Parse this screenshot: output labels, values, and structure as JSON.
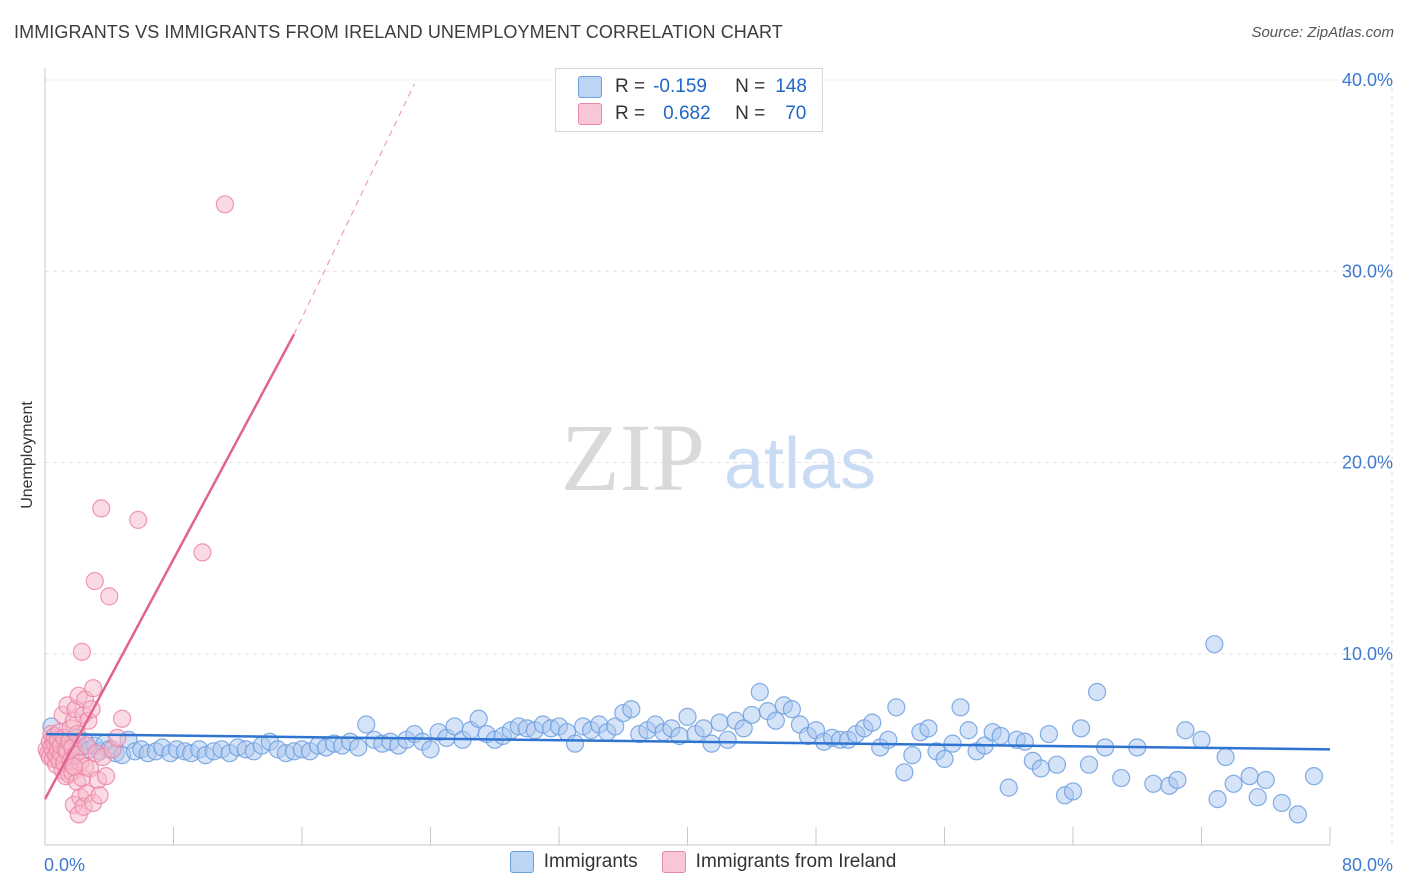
{
  "header": {
    "title": "IMMIGRANTS VS IMMIGRANTS FROM IRELAND UNEMPLOYMENT CORRELATION CHART",
    "source": "Source: ZipAtlas.com"
  },
  "watermark": {
    "zip": "ZIP",
    "atlas": "atlas"
  },
  "legend_top": {
    "rows": [
      {
        "r_label": "R =",
        "r_value": "-0.159",
        "n_label": "N =",
        "n_value": "148"
      },
      {
        "r_label": "R =",
        "r_value": "0.682",
        "n_label": "N =",
        "n_value": "70"
      }
    ]
  },
  "colors": {
    "blue_fill": "#aac8ef",
    "blue_stroke": "#6d9fdf",
    "blue_line": "#2f74d0",
    "pink_fill": "#f5b7c9",
    "pink_stroke": "#ec86a6",
    "pink_line": "#e2638f",
    "grid": "#e2e2e2",
    "axis_text": "#3e7ad0"
  },
  "chart_data": {
    "type": "scatter",
    "title": "IMMIGRANTS VS IMMIGRANTS FROM IRELAND UNEMPLOYMENT CORRELATION CHART",
    "xlabel": "",
    "ylabel": "Unemployment",
    "xlim": [
      0,
      80
    ],
    "ylim": [
      0,
      40
    ],
    "x_tick_labels": [
      "0.0%",
      "80.0%"
    ],
    "y_ticks": [
      10,
      20,
      30,
      40
    ],
    "y_tick_labels": [
      "10.0%",
      "20.0%",
      "30.0%",
      "40.0%"
    ],
    "grid": true,
    "legend_position": "top-center",
    "series": [
      {
        "name": "Immigrants",
        "r": -0.159,
        "n": 148,
        "trend": {
          "x0": 0.1,
          "y0": 5.8,
          "x1": 80,
          "y1": 5.0
        },
        "points": [
          [
            0.4,
            6.2
          ],
          [
            0.5,
            5.6
          ],
          [
            0.7,
            5.1
          ],
          [
            0.9,
            4.8
          ],
          [
            1.1,
            5.4
          ],
          [
            1.3,
            5.0
          ],
          [
            1.5,
            5.5
          ],
          [
            1.6,
            4.7
          ],
          [
            1.8,
            5.2
          ],
          [
            2.0,
            5.6
          ],
          [
            2.2,
            5.1
          ],
          [
            2.5,
            5.4
          ],
          [
            2.8,
            5.0
          ],
          [
            3.1,
            5.2
          ],
          [
            3.4,
            4.9
          ],
          [
            3.7,
            5.3
          ],
          [
            4.0,
            5.0
          ],
          [
            4.4,
            4.8
          ],
          [
            4.8,
            4.7
          ],
          [
            5.2,
            5.5
          ],
          [
            5.6,
            4.9
          ],
          [
            6.0,
            5.0
          ],
          [
            6.4,
            4.8
          ],
          [
            6.9,
            4.9
          ],
          [
            7.3,
            5.1
          ],
          [
            7.8,
            4.8
          ],
          [
            8.2,
            5.0
          ],
          [
            8.7,
            4.9
          ],
          [
            9.1,
            4.8
          ],
          [
            9.6,
            5.0
          ],
          [
            10.0,
            4.7
          ],
          [
            10.5,
            4.9
          ],
          [
            11.0,
            5.0
          ],
          [
            11.5,
            4.8
          ],
          [
            12.0,
            5.1
          ],
          [
            12.5,
            5.0
          ],
          [
            13.0,
            4.9
          ],
          [
            13.5,
            5.2
          ],
          [
            14.0,
            5.4
          ],
          [
            14.5,
            5.0
          ],
          [
            15.0,
            4.8
          ],
          [
            15.5,
            4.9
          ],
          [
            16.0,
            5.0
          ],
          [
            16.5,
            4.9
          ],
          [
            17.0,
            5.2
          ],
          [
            17.5,
            5.1
          ],
          [
            18.0,
            5.3
          ],
          [
            18.5,
            5.2
          ],
          [
            19.0,
            5.4
          ],
          [
            19.5,
            5.1
          ],
          [
            20.0,
            6.3
          ],
          [
            20.5,
            5.5
          ],
          [
            21.0,
            5.3
          ],
          [
            21.5,
            5.4
          ],
          [
            22.0,
            5.2
          ],
          [
            22.5,
            5.5
          ],
          [
            23.0,
            5.8
          ],
          [
            23.5,
            5.4
          ],
          [
            24.0,
            5.0
          ],
          [
            24.5,
            5.9
          ],
          [
            25.0,
            5.6
          ],
          [
            25.5,
            6.2
          ],
          [
            26.0,
            5.5
          ],
          [
            26.5,
            6.0
          ],
          [
            27.0,
            6.6
          ],
          [
            27.5,
            5.8
          ],
          [
            28.0,
            5.5
          ],
          [
            28.5,
            5.7
          ],
          [
            29.0,
            6.0
          ],
          [
            29.5,
            6.2
          ],
          [
            30.0,
            6.1
          ],
          [
            30.5,
            6.0
          ],
          [
            31.0,
            6.3
          ],
          [
            31.5,
            6.1
          ],
          [
            32.0,
            6.2
          ],
          [
            32.5,
            5.9
          ],
          [
            33.0,
            5.3
          ],
          [
            33.5,
            6.2
          ],
          [
            34.0,
            6.0
          ],
          [
            34.5,
            6.3
          ],
          [
            35.0,
            5.9
          ],
          [
            35.5,
            6.2
          ],
          [
            36.0,
            6.9
          ],
          [
            36.5,
            7.1
          ],
          [
            37.0,
            5.8
          ],
          [
            37.5,
            6.0
          ],
          [
            38.0,
            6.3
          ],
          [
            38.5,
            5.9
          ],
          [
            39.0,
            6.1
          ],
          [
            39.5,
            5.7
          ],
          [
            40.0,
            6.7
          ],
          [
            40.5,
            5.8
          ],
          [
            41.0,
            6.1
          ],
          [
            41.5,
            5.3
          ],
          [
            42.0,
            6.4
          ],
          [
            42.5,
            5.5
          ],
          [
            43.0,
            6.5
          ],
          [
            43.5,
            6.1
          ],
          [
            44.0,
            6.8
          ],
          [
            44.5,
            8.0
          ],
          [
            45.0,
            7.0
          ],
          [
            45.5,
            6.5
          ],
          [
            46.0,
            7.3
          ],
          [
            46.5,
            7.1
          ],
          [
            47.0,
            6.3
          ],
          [
            47.5,
            5.7
          ],
          [
            48.0,
            6.0
          ],
          [
            48.5,
            5.4
          ],
          [
            49.0,
            5.6
          ],
          [
            49.5,
            5.5
          ],
          [
            50.0,
            5.5
          ],
          [
            50.5,
            5.8
          ],
          [
            51.0,
            6.1
          ],
          [
            51.5,
            6.4
          ],
          [
            52.0,
            5.1
          ],
          [
            52.5,
            5.5
          ],
          [
            53.0,
            7.2
          ],
          [
            53.5,
            3.8
          ],
          [
            54.0,
            4.7
          ],
          [
            54.5,
            5.9
          ],
          [
            55.0,
            6.1
          ],
          [
            55.5,
            4.9
          ],
          [
            56.0,
            4.5
          ],
          [
            56.5,
            5.3
          ],
          [
            57.0,
            7.2
          ],
          [
            57.5,
            6.0
          ],
          [
            58.0,
            4.9
          ],
          [
            58.5,
            5.2
          ],
          [
            59.0,
            5.9
          ],
          [
            59.5,
            5.7
          ],
          [
            60.0,
            3.0
          ],
          [
            60.5,
            5.5
          ],
          [
            61.0,
            5.4
          ],
          [
            61.5,
            4.4
          ],
          [
            62.0,
            4.0
          ],
          [
            62.5,
            5.8
          ],
          [
            63.0,
            4.2
          ],
          [
            63.5,
            2.6
          ],
          [
            64.0,
            2.8
          ],
          [
            64.5,
            6.1
          ],
          [
            65.0,
            4.2
          ],
          [
            65.5,
            8.0
          ],
          [
            66.0,
            5.1
          ],
          [
            67.0,
            3.5
          ],
          [
            68.0,
            5.1
          ],
          [
            69.0,
            3.2
          ],
          [
            70.0,
            3.1
          ],
          [
            71.0,
            6.0
          ],
          [
            72.0,
            5.5
          ],
          [
            73.0,
            2.4
          ],
          [
            74.0,
            3.2
          ],
          [
            75.0,
            3.6
          ],
          [
            76.0,
            3.4
          ],
          [
            77.0,
            2.2
          ],
          [
            78.0,
            1.6
          ],
          [
            79.0,
            3.6
          ],
          [
            72.8,
            10.5
          ],
          [
            73.5,
            4.6
          ],
          [
            75.5,
            2.5
          ],
          [
            70.5,
            3.4
          ]
        ]
      },
      {
        "name": "Immigrants from Ireland",
        "r": 0.682,
        "n": 70,
        "trend": {
          "x0": 0.0,
          "y0": 2.4,
          "x1": 15.5,
          "y1": 26.7
        },
        "trend_dashed": {
          "x0": 15.5,
          "y0": 26.7,
          "x1": 23.0,
          "y1": 39.8
        },
        "points": [
          [
            0.1,
            5.0
          ],
          [
            0.2,
            4.8
          ],
          [
            0.3,
            5.4
          ],
          [
            0.3,
            4.6
          ],
          [
            0.4,
            5.8
          ],
          [
            0.4,
            5.1
          ],
          [
            0.5,
            4.9
          ],
          [
            0.5,
            4.5
          ],
          [
            0.6,
            5.3
          ],
          [
            0.6,
            5.7
          ],
          [
            0.7,
            4.2
          ],
          [
            0.7,
            4.7
          ],
          [
            0.8,
            5.0
          ],
          [
            0.8,
            5.5
          ],
          [
            0.9,
            4.4
          ],
          [
            0.9,
            5.9
          ],
          [
            1.0,
            4.8
          ],
          [
            1.0,
            5.2
          ],
          [
            1.1,
            6.8
          ],
          [
            1.1,
            3.9
          ],
          [
            1.2,
            5.6
          ],
          [
            1.2,
            4.3
          ],
          [
            1.3,
            5.0
          ],
          [
            1.3,
            3.6
          ],
          [
            1.4,
            4.9
          ],
          [
            1.4,
            7.3
          ],
          [
            1.5,
            5.4
          ],
          [
            1.5,
            3.7
          ],
          [
            1.6,
            6.1
          ],
          [
            1.6,
            4.4
          ],
          [
            1.7,
            5.1
          ],
          [
            1.7,
            3.8
          ],
          [
            1.8,
            6.5
          ],
          [
            1.8,
            2.1
          ],
          [
            1.9,
            4.7
          ],
          [
            1.9,
            7.1
          ],
          [
            2.0,
            5.8
          ],
          [
            2.0,
            3.3
          ],
          [
            2.1,
            7.8
          ],
          [
            2.1,
            1.6
          ],
          [
            2.2,
            4.3
          ],
          [
            2.2,
            2.5
          ],
          [
            2.3,
            10.1
          ],
          [
            2.3,
            3.5
          ],
          [
            2.4,
            6.8
          ],
          [
            2.4,
            2.0
          ],
          [
            2.5,
            7.6
          ],
          [
            2.5,
            4.1
          ],
          [
            2.6,
            5.2
          ],
          [
            2.6,
            2.7
          ],
          [
            2.7,
            6.5
          ],
          [
            2.8,
            4.0
          ],
          [
            2.9,
            7.1
          ],
          [
            3.0,
            8.2
          ],
          [
            3.0,
            2.2
          ],
          [
            3.1,
            13.8
          ],
          [
            3.2,
            4.8
          ],
          [
            3.3,
            3.4
          ],
          [
            3.4,
            2.6
          ],
          [
            3.5,
            17.6
          ],
          [
            3.6,
            4.6
          ],
          [
            3.8,
            3.6
          ],
          [
            4.0,
            13.0
          ],
          [
            4.2,
            5.0
          ],
          [
            4.5,
            5.6
          ],
          [
            4.8,
            6.6
          ],
          [
            5.8,
            17.0
          ],
          [
            9.8,
            15.3
          ],
          [
            11.2,
            33.5
          ],
          [
            1.8,
            4.1
          ]
        ]
      }
    ]
  }
}
